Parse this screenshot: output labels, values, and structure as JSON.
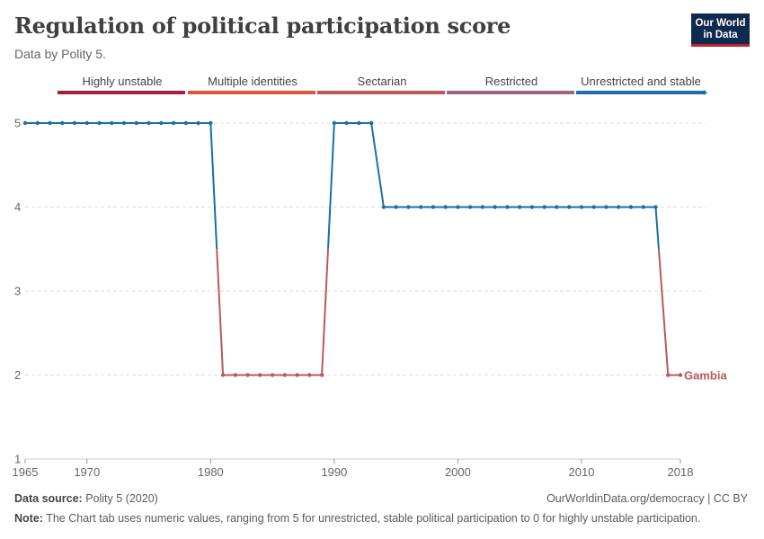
{
  "header": {
    "title": "Regulation of political participation score",
    "subtitle": "Data by Polity 5.",
    "logo_line1": "Our World",
    "logo_line2": "in Data"
  },
  "legend": {
    "items": [
      {
        "label": "Highly unstable",
        "color": "#a2213c"
      },
      {
        "label": "Multiple identities",
        "color": "#e0553b"
      },
      {
        "label": "Sectarian",
        "color": "#b9595b"
      },
      {
        "label": "Restricted",
        "color": "#a0657e"
      },
      {
        "label": "Unrestricted and stable",
        "color": "#1a6fa8"
      }
    ]
  },
  "chart_data": {
    "type": "line",
    "title": "Regulation of political participation score",
    "subtitle": "Data by Polity 5.",
    "xlabel": "",
    "ylabel": "",
    "xlim": [
      1965,
      2018
    ],
    "ylim": [
      1,
      5
    ],
    "y_ticks": [
      "1",
      "2",
      "3",
      "4",
      "5"
    ],
    "x_ticks": [
      "1965",
      "1970",
      "1980",
      "1990",
      "2000",
      "2010",
      "2018"
    ],
    "grid": "horizontal dashed",
    "series": [
      {
        "name": "Gambia",
        "label_color": "#b9595b",
        "x": [
          1965,
          1966,
          1967,
          1968,
          1969,
          1970,
          1971,
          1972,
          1973,
          1974,
          1975,
          1976,
          1977,
          1978,
          1979,
          1980,
          1981,
          1982,
          1983,
          1984,
          1985,
          1986,
          1987,
          1988,
          1989,
          1990,
          1991,
          1992,
          1993,
          1994,
          1995,
          1996,
          1997,
          1998,
          1999,
          2000,
          2001,
          2002,
          2003,
          2004,
          2005,
          2006,
          2007,
          2008,
          2009,
          2010,
          2011,
          2012,
          2013,
          2014,
          2015,
          2016,
          2017,
          2018
        ],
        "y": [
          5,
          5,
          5,
          5,
          5,
          5,
          5,
          5,
          5,
          5,
          5,
          5,
          5,
          5,
          5,
          5,
          2,
          2,
          2,
          2,
          2,
          2,
          2,
          2,
          2,
          5,
          5,
          5,
          5,
          4,
          4,
          4,
          4,
          4,
          4,
          4,
          4,
          4,
          4,
          4,
          4,
          4,
          4,
          4,
          4,
          4,
          4,
          4,
          4,
          4,
          4,
          4,
          2,
          2
        ]
      }
    ]
  },
  "footer": {
    "source_label": "Data source:",
    "source_text": "Polity 5 (2020)",
    "url_text": "OurWorldinData.org/democracy | CC BY",
    "note_label": "Note:",
    "note_text": "The Chart tab uses numeric values, ranging from 5 for unrestricted, stable political participation to 0 for highly unstable participation."
  },
  "colors": {
    "high": "#1a6fa8",
    "low": "#b9595b",
    "grid": "#dddddd",
    "axis_text": "#666666"
  }
}
